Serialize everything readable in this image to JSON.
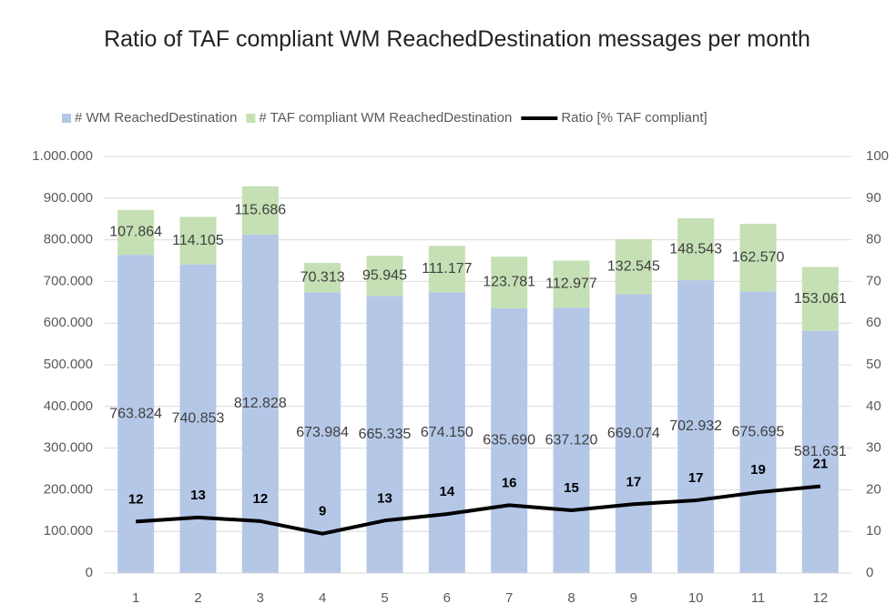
{
  "chart_data": {
    "type": "bar",
    "title": "Ratio of TAF compliant WM ReachedDestination messages per month",
    "categories": [
      "1",
      "2",
      "3",
      "4",
      "5",
      "6",
      "7",
      "8",
      "9",
      "10",
      "11",
      "12"
    ],
    "stacked": true,
    "series": [
      {
        "name": "# WM ReachedDestination",
        "color": "#b4c7e7",
        "type": "bar",
        "values": [
          763824,
          740853,
          812828,
          673984,
          665335,
          674150,
          635690,
          637120,
          669074,
          702932,
          675695,
          581631
        ],
        "value_labels": [
          "763.824",
          "740.853",
          "812.828",
          "673.984",
          "665.335",
          "674.150",
          "635.690",
          "637.120",
          "669.074",
          "702.932",
          "675.695",
          "581.631"
        ]
      },
      {
        "name": "# TAF compliant WM ReachedDestination",
        "color": "#c5e0b4",
        "type": "bar",
        "values": [
          107864,
          114105,
          115686,
          70313,
          95945,
          111177,
          123781,
          112977,
          132545,
          148543,
          162570,
          153061
        ],
        "value_labels": [
          "107.864",
          "114.105",
          "115.686",
          "70.313",
          "95.945",
          "111.177",
          "123.781",
          "112.977",
          "132.545",
          "148.543",
          "162.570",
          "153.061"
        ]
      },
      {
        "name": "Ratio [% TAF compliant]",
        "color": "#000000",
        "type": "line",
        "axis": "y2",
        "values": [
          12.37,
          13.35,
          12.46,
          9.45,
          12.6,
          14.16,
          16.3,
          15.06,
          16.53,
          17.45,
          19.39,
          20.83
        ],
        "value_labels": [
          "12",
          "13",
          "12",
          "9",
          "13",
          "14",
          "16",
          "15",
          "17",
          "17",
          "19",
          "21"
        ]
      }
    ],
    "ylim": [
      0,
      1000000
    ],
    "yticks": [
      0,
      {
        "value": 100000,
        "label": "100.000"
      },
      {
        "value": 200000,
        "label": "200.000"
      },
      {
        "value": 300000,
        "label": "300.000"
      },
      {
        "value": 400000,
        "label": "400.000"
      },
      {
        "value": 500000,
        "label": "500.000"
      },
      {
        "value": 600000,
        "label": "600.000"
      },
      {
        "value": 700000,
        "label": "700.000"
      },
      {
        "value": 800000,
        "label": "800.000"
      },
      {
        "value": 900000,
        "label": "900.000"
      },
      {
        "value": 1000000,
        "label": "1.000.000"
      }
    ],
    "y2lim": [
      0,
      100
    ],
    "y2ticks": [
      0,
      10,
      20,
      30,
      40,
      50,
      60,
      70,
      80,
      90,
      100
    ],
    "grid": true,
    "legend": "top"
  }
}
